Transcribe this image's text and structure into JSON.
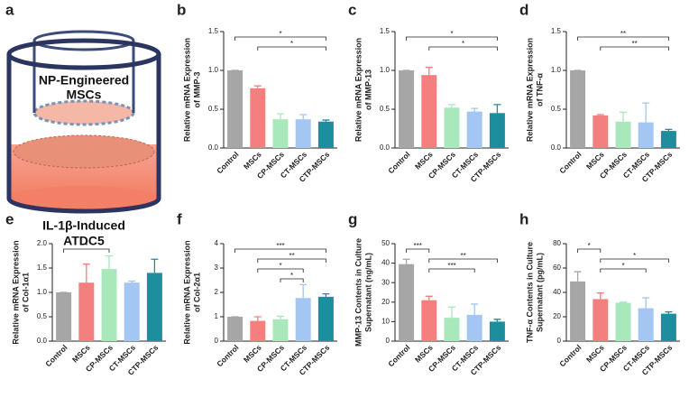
{
  "diagram": {
    "panel": "a",
    "insert_label": [
      "NP-Engineered",
      "MSCs"
    ],
    "base_label": [
      "IL-1β-Induced",
      "ATDC5"
    ]
  },
  "chart_data": [
    {
      "type": "bar",
      "panel": "b",
      "ylabel": [
        "Relative mRNA Expression",
        "of MMP-3"
      ],
      "categories": [
        "Control",
        "MSCs",
        "CP-MSCs",
        "CT-MSCs",
        "CTP-MSCs"
      ],
      "colors": [
        "#a6a6a6",
        "#f47f7f",
        "#a9e8bb",
        "#a3c6f2",
        "#1d8e9e"
      ],
      "values": [
        1.0,
        0.77,
        0.37,
        0.37,
        0.34
      ],
      "errors": [
        0,
        0.03,
        0.07,
        0.06,
        0.02
      ],
      "ylim": [
        0,
        1.5
      ],
      "yticks": [
        {
          "value": 0,
          "label": "0.0"
        },
        {
          "value": 0.5,
          "label": "0.5"
        },
        {
          "value": 1,
          "label": "1.0"
        },
        {
          "value": 1.5,
          "label": "1.5"
        }
      ],
      "brackets": [
        {
          "from": "Control",
          "to": "CTP-MSCs",
          "label": "*"
        },
        {
          "from": "MSCs",
          "to": "CTP-MSCs",
          "label": "*"
        }
      ]
    },
    {
      "type": "bar",
      "panel": "c",
      "ylabel": [
        "Relative mRNA Expression",
        "of MMP-13"
      ],
      "categories": [
        "Control",
        "MSCs",
        "CP-MSCs",
        "CT-MSCs",
        "CTP-MSCs"
      ],
      "colors": [
        "#a6a6a6",
        "#f47f7f",
        "#a9e8bb",
        "#a3c6f2",
        "#1d8e9e"
      ],
      "values": [
        1.0,
        0.94,
        0.52,
        0.47,
        0.45
      ],
      "errors": [
        0,
        0.1,
        0.04,
        0.04,
        0.11
      ],
      "ylim": [
        0,
        1.5
      ],
      "yticks": [
        {
          "value": 0,
          "label": "0.0"
        },
        {
          "value": 0.5,
          "label": "0.5"
        },
        {
          "value": 1,
          "label": "1.0"
        },
        {
          "value": 1.5,
          "label": "1.5"
        }
      ],
      "brackets": [
        {
          "from": "Control",
          "to": "CTP-MSCs",
          "label": "*"
        },
        {
          "from": "MSCs",
          "to": "CTP-MSCs",
          "label": "*"
        }
      ]
    },
    {
      "type": "bar",
      "panel": "d",
      "ylabel": [
        "Relative mRNA Expression",
        "of  TNF-α"
      ],
      "categories": [
        "Control",
        "MSCs",
        "CP-MSCs",
        "CT-MSCs",
        "CTP-MSCs"
      ],
      "colors": [
        "#a6a6a6",
        "#f47f7f",
        "#a9e8bb",
        "#a3c6f2",
        "#1d8e9e"
      ],
      "values": [
        1.0,
        0.42,
        0.34,
        0.33,
        0.22
      ],
      "errors": [
        0,
        0.01,
        0.12,
        0.25,
        0.02
      ],
      "ylim": [
        0,
        1.5
      ],
      "yticks": [
        {
          "value": 0,
          "label": "0.0"
        },
        {
          "value": 0.5,
          "label": "0.5"
        },
        {
          "value": 1,
          "label": "1.0"
        },
        {
          "value": 1.5,
          "label": "1.5"
        }
      ],
      "brackets": [
        {
          "from": "Control",
          "to": "CTP-MSCs",
          "label": "**"
        },
        {
          "from": "MSCs",
          "to": "CTP-MSCs",
          "label": "**"
        }
      ]
    },
    {
      "type": "bar",
      "panel": "e",
      "ylabel": [
        "Relative mRNA Expression",
        "of Col-1α1"
      ],
      "categories": [
        "Control",
        "MSCs",
        "CP-MSCs",
        "CT-MSCs",
        "CTP-MSCs"
      ],
      "colors": [
        "#a6a6a6",
        "#f47f7f",
        "#a9e8bb",
        "#a3c6f2",
        "#1d8e9e"
      ],
      "values": [
        1.0,
        1.2,
        1.48,
        1.2,
        1.4
      ],
      "errors": [
        0,
        0.38,
        0.27,
        0.03,
        0.28
      ],
      "ylim": [
        0,
        2
      ],
      "yticks": [
        {
          "value": 0,
          "label": "0.0"
        },
        {
          "value": 0.5,
          "label": "0.5"
        },
        {
          "value": 1,
          "label": "1.0"
        },
        {
          "value": 1.5,
          "label": "1.5"
        },
        {
          "value": 2,
          "label": "2.0"
        }
      ],
      "brackets": [
        {
          "from": "Control",
          "to": "CP-MSCs",
          "label": "*"
        }
      ]
    },
    {
      "type": "bar",
      "panel": "f",
      "ylabel": [
        "Relative mRNA Expression",
        "of Col-2α1"
      ],
      "categories": [
        "Control",
        "MSCs",
        "CP-MSCs",
        "CT-MSCs",
        "CTP-MSCs"
      ],
      "colors": [
        "#a6a6a6",
        "#f47f7f",
        "#a9e8bb",
        "#a3c6f2",
        "#1d8e9e"
      ],
      "values": [
        1.0,
        0.83,
        0.9,
        1.77,
        1.82
      ],
      "errors": [
        0,
        0.17,
        0.12,
        0.55,
        0.12
      ],
      "ylim": [
        0,
        4
      ],
      "yticks": [
        0,
        1,
        2,
        3,
        4
      ],
      "brackets": [
        {
          "from": "Control",
          "to": "CTP-MSCs",
          "label": "***"
        },
        {
          "from": "MSCs",
          "to": "CTP-MSCs",
          "label": "**"
        },
        {
          "from": "MSCs",
          "to": "CT-MSCs",
          "label": "*"
        },
        {
          "from": "CP-MSCs",
          "to": "CT-MSCs",
          "label": "*"
        }
      ]
    },
    {
      "type": "bar",
      "panel": "g",
      "ylabel": [
        "MMP-13 Contents in Culture",
        "Supernatant (ng/mL)"
      ],
      "categories": [
        "Control",
        "MSCs",
        "CP-MSCs",
        "CT-MSCs",
        "CTP-MSCs"
      ],
      "colors": [
        "#a6a6a6",
        "#f47f7f",
        "#a9e8bb",
        "#a3c6f2",
        "#1d8e9e"
      ],
      "values": [
        39.5,
        21,
        12,
        13.5,
        10
      ],
      "errors": [
        2.5,
        2,
        5.5,
        5.5,
        1.2
      ],
      "ylim": [
        0,
        50
      ],
      "yticks": [
        0,
        10,
        20,
        30,
        40,
        50
      ],
      "brackets": [
        {
          "from": "Control",
          "to": "MSCs",
          "label": "***"
        },
        {
          "from": "MSCs",
          "to": "CTP-MSCs",
          "label": "**"
        },
        {
          "from": "MSCs",
          "to": "CT-MSCs",
          "label": "***"
        }
      ]
    },
    {
      "type": "bar",
      "panel": "h",
      "ylabel": [
        "TNF-α Contents in Culture",
        "Supernatant (pg/mL)"
      ],
      "categories": [
        "Control",
        "MSCs",
        "CP-MSCs",
        "CT-MSCs",
        "CTP-MSCs"
      ],
      "colors": [
        "#a6a6a6",
        "#f47f7f",
        "#a9e8bb",
        "#a3c6f2",
        "#1d8e9e"
      ],
      "values": [
        49,
        34.5,
        31.5,
        27,
        22.5
      ],
      "errors": [
        8,
        5,
        0.5,
        8.5,
        1.5
      ],
      "ylim": [
        0,
        80
      ],
      "yticks": [
        0,
        20,
        40,
        60,
        80
      ],
      "brackets": [
        {
          "from": "Control",
          "to": "MSCs",
          "label": "*"
        },
        {
          "from": "MSCs",
          "to": "CTP-MSCs",
          "label": "*"
        },
        {
          "from": "MSCs",
          "to": "CT-MSCs",
          "label": "*"
        }
      ]
    }
  ]
}
